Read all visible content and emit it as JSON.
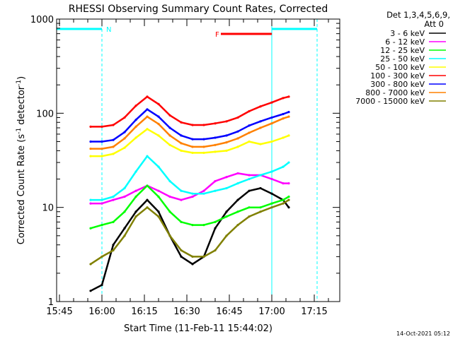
{
  "chart_data": {
    "type": "line",
    "title": "RHESSI Observing Summary Count Rates, Corrected",
    "xlabel": "Start Time (11-Feb-11 15:44:02)",
    "ylabel": "Corrected Count Rate (s⁻¹ detector⁻¹)",
    "x_unit": "minutes after 15:44:02",
    "xlim": [
      0,
      100
    ],
    "ylim": [
      1,
      1000
    ],
    "yscale": "log",
    "grid": false,
    "legend_position": "top-right",
    "x_ticks": [
      {
        "label": "15:45",
        "value": 1
      },
      {
        "label": "16:00",
        "value": 16
      },
      {
        "label": "16:15",
        "value": 31
      },
      {
        "label": "16:30",
        "value": 46
      },
      {
        "label": "16:45",
        "value": 61
      },
      {
        "label": "17:00",
        "value": 76
      },
      {
        "label": "17:15",
        "value": 91
      }
    ],
    "y_ticks": [
      {
        "label": "1",
        "value": 1
      },
      {
        "label": "10",
        "value": 10
      },
      {
        "label": "100",
        "value": 100
      },
      {
        "label": "1000",
        "value": 1000
      }
    ],
    "legend_header": [
      "Det 1,3,4,5,6,9,",
      "Att 0"
    ],
    "x": [
      12,
      16,
      20,
      24,
      28,
      32,
      36,
      40,
      44,
      48,
      52,
      56,
      60,
      64,
      68,
      72,
      76,
      80,
      82
    ],
    "series": [
      {
        "name": "3 - 6 keV",
        "color": "#000000",
        "values": [
          1.3,
          1.5,
          4.0,
          6.0,
          9.0,
          12.0,
          9.0,
          5.0,
          3.0,
          2.5,
          3.0,
          6.0,
          9.0,
          12.0,
          15.0,
          16.0,
          14.0,
          12.0,
          10.0
        ]
      },
      {
        "name": "6 - 12 keV",
        "color": "#ff00ff",
        "values": [
          11.0,
          11.0,
          12.0,
          13.0,
          15.0,
          17.0,
          15.0,
          13.0,
          12.0,
          13.0,
          15.0,
          19.0,
          21.0,
          23.0,
          22.0,
          22.0,
          20.0,
          18.0,
          18.0
        ]
      },
      {
        "name": "12 - 25 keV",
        "color": "#00ff00",
        "values": [
          6.0,
          6.5,
          7.0,
          9.0,
          13.0,
          17.0,
          13.0,
          9.0,
          7.0,
          6.5,
          6.5,
          7.0,
          8.0,
          9.0,
          10.0,
          10.0,
          11.0,
          12.0,
          13.0
        ]
      },
      {
        "name": "25 - 50 keV",
        "color": "#00ffff",
        "values": [
          12.0,
          12.0,
          13.0,
          16.0,
          24.0,
          35.0,
          27.0,
          19.0,
          15.0,
          14.0,
          14.0,
          15.0,
          16.0,
          18.0,
          20.0,
          22.0,
          24.0,
          27.0,
          30.0
        ]
      },
      {
        "name": "50 - 100 keV",
        "color": "#ffff00",
        "values": [
          35.0,
          35.0,
          37.0,
          43.0,
          55.0,
          68.0,
          58.0,
          46.0,
          40.0,
          38.0,
          38.0,
          39.0,
          40.0,
          44.0,
          50.0,
          47.0,
          50.0,
          55.0,
          58.0
        ]
      },
      {
        "name": "100 - 300 keV",
        "color": "#ff0000",
        "values": [
          72.0,
          72.0,
          75.0,
          90.0,
          120.0,
          150.0,
          125.0,
          95.0,
          80.0,
          75.0,
          75.0,
          78.0,
          82.0,
          90.0,
          105.0,
          118.0,
          130.0,
          145.0,
          150.0
        ]
      },
      {
        "name": "300 - 800 keV",
        "color": "#0000ff",
        "values": [
          50.0,
          50.0,
          52.0,
          63.0,
          85.0,
          110.0,
          92.0,
          70.0,
          58.0,
          53.0,
          53.0,
          55.0,
          58.0,
          64.0,
          74.0,
          82.0,
          90.0,
          98.0,
          103.0
        ]
      },
      {
        "name": "800 - 7000 keV",
        "color": "#ff8000",
        "values": [
          42.0,
          42.0,
          44.0,
          54.0,
          72.0,
          92.0,
          77.0,
          58.0,
          48.0,
          44.0,
          44.0,
          46.0,
          49.0,
          54.0,
          62.0,
          70.0,
          78.0,
          88.0,
          92.0
        ]
      },
      {
        "name": "7000 - 15000 keV",
        "color": "#808000",
        "values": [
          2.5,
          3.0,
          3.5,
          5.0,
          8.0,
          10.0,
          8.0,
          5.0,
          3.5,
          3.0,
          3.0,
          3.5,
          5.0,
          6.5,
          8.0,
          9.0,
          10.0,
          11.0,
          12.0
        ]
      }
    ],
    "annotations": [
      {
        "label": "N",
        "color": "#00ffff",
        "x_start": 0,
        "x_end": 16
      },
      {
        "label": "F",
        "color": "#ff0000",
        "x_start": 58,
        "x_end": 76
      },
      {
        "label": "",
        "color": "#00ffff",
        "x_start": 76,
        "x_end": 92
      }
    ],
    "vertical_lines": [
      {
        "x": 16,
        "color": "#00ffff",
        "style": "dashed"
      },
      {
        "x": 76,
        "color": "#00ffff",
        "style": "solid"
      },
      {
        "x": 92,
        "color": "#00ffff",
        "style": "dashed"
      }
    ],
    "footer": "14-Oct-2021 05:12"
  }
}
